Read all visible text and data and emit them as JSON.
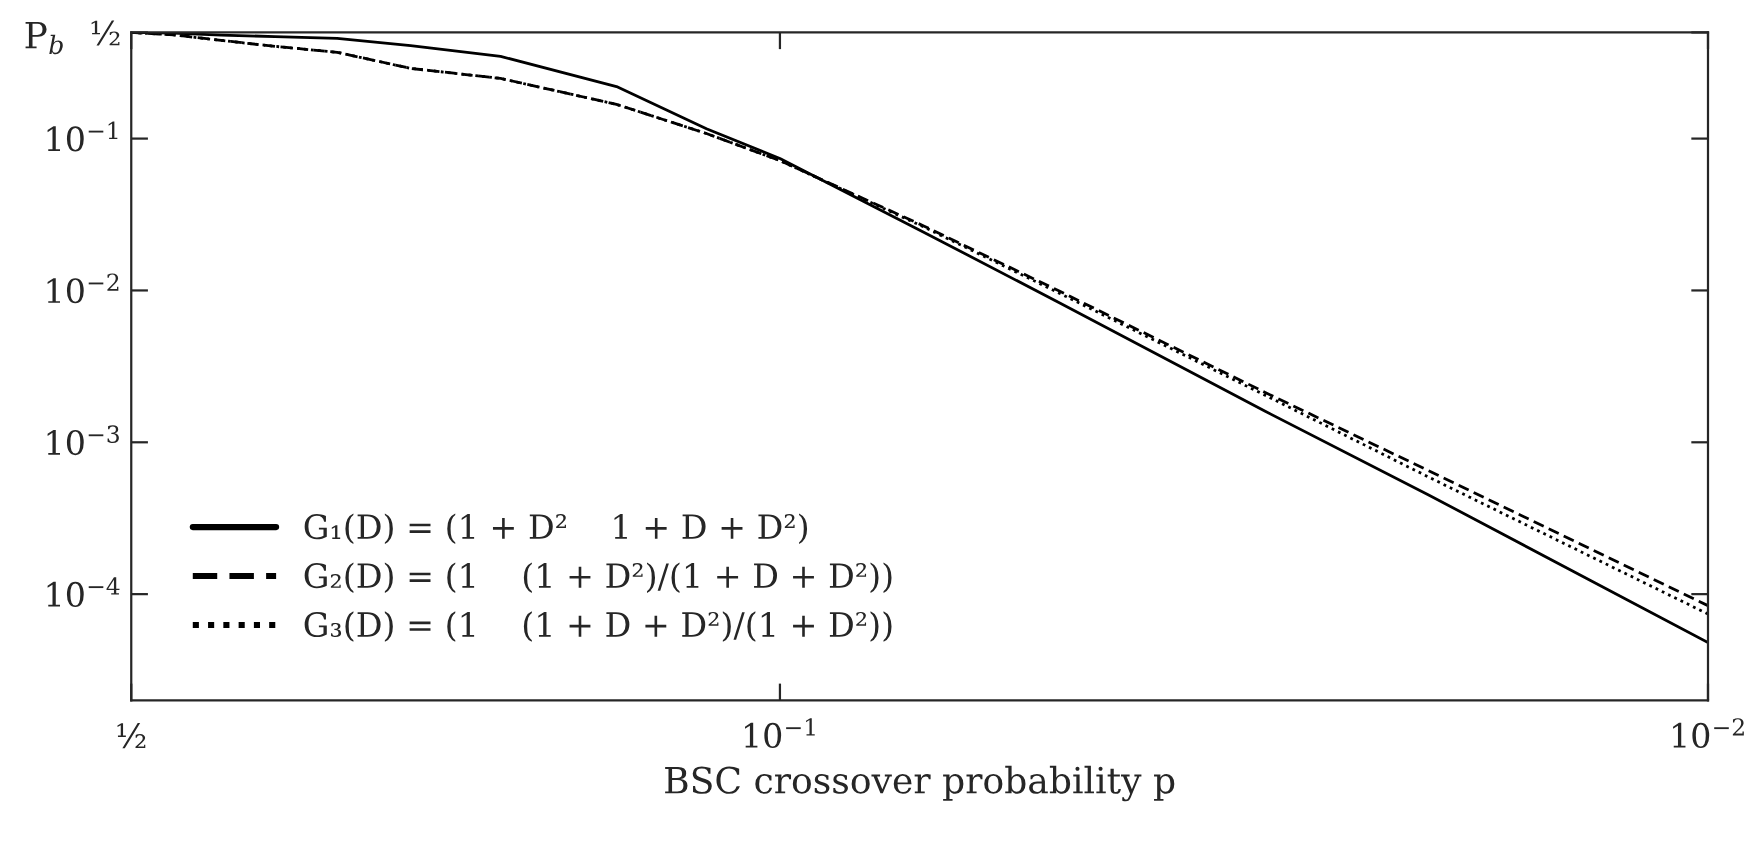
{
  "chart_data": {
    "type": "line",
    "xlabel": "BSC crossover probability p",
    "ylabel": "P$_{b}$",
    "log": "xy",
    "xlim": [
      0.5,
      0.01
    ],
    "ylim": [
      2e-05,
      0.5
    ],
    "xticks": [
      {
        "value": 0.5,
        "label": "½"
      },
      {
        "value": 0.1,
        "label": "10$^{−1}$"
      },
      {
        "value": 0.01,
        "label": "10$^{−2}$"
      }
    ],
    "yticks": [
      {
        "value": 0.5,
        "label": "½"
      },
      {
        "value": 0.1,
        "label": "10$^{−1}$"
      },
      {
        "value": 0.01,
        "label": "10$^{−2}$"
      },
      {
        "value": 0.001,
        "label": "10$^{−3}$"
      },
      {
        "value": 0.0001,
        "label": "10$^{−4}$"
      }
    ],
    "x": [
      0.5,
      0.45,
      0.4,
      0.35,
      0.3,
      0.25,
      0.2,
      0.15,
      0.12,
      0.1,
      0.07,
      0.05,
      0.03,
      0.02,
      0.01
    ],
    "grid": false,
    "legend": "bottom left",
    "marker": "none",
    "series": [
      {
        "name": "G₁(D) = (1 + D²    1 + D + D²)",
        "color": "#000000",
        "line_style": "solid",
        "values": [
          0.5,
          0.495,
          0.48,
          0.47,
          0.457,
          0.41,
          0.348,
          0.22,
          0.116,
          0.074,
          0.0242,
          0.0083,
          0.0016,
          0.00045,
          4.8e-05
        ]
      },
      {
        "name": "G₂(D) = (1    (1 + D²)/(1 + D + D²))",
        "color": "#000000",
        "line_style": "dashed",
        "values": [
          0.5,
          0.482,
          0.443,
          0.405,
          0.37,
          0.29,
          0.249,
          0.168,
          0.108,
          0.0716,
          0.0266,
          0.0099,
          0.00213,
          0.00065,
          8.4e-05
        ]
      },
      {
        "name": "G₃(D) = (1    (1 + D + D²)/(1 + D²))",
        "color": "#000000",
        "line_style": "dotted",
        "values": [
          0.5,
          0.482,
          0.443,
          0.405,
          0.37,
          0.29,
          0.249,
          0.168,
          0.108,
          0.0716,
          0.0262,
          0.0096,
          0.00204,
          0.00059,
          7.4e-05
        ]
      }
    ]
  }
}
